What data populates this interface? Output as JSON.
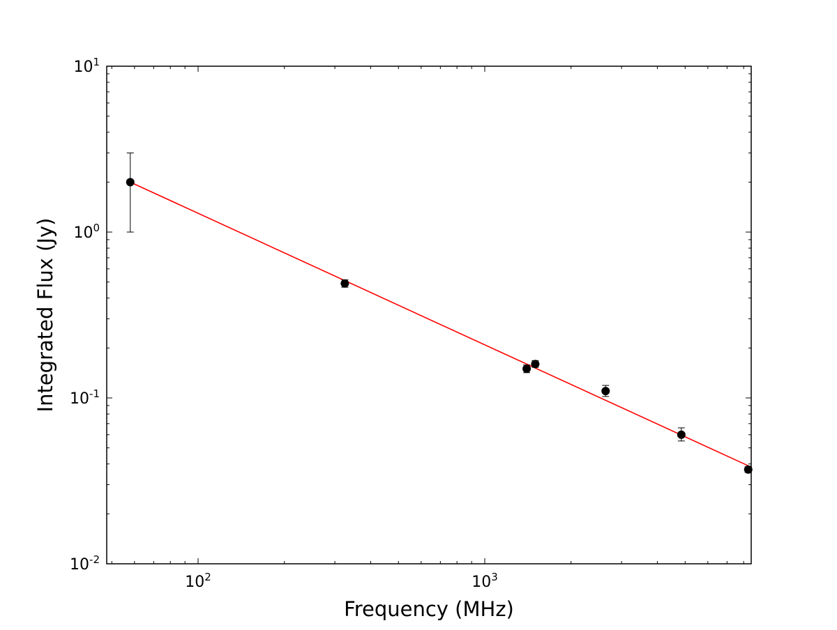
{
  "chart_data": {
    "type": "scatter",
    "title": "",
    "xlabel": "Frequency (MHz)",
    "ylabel": "Integrated Flux (Jy)",
    "xscale": "log",
    "yscale": "log",
    "xlim": [
      48,
      8500
    ],
    "ylim": [
      0.01,
      10
    ],
    "grid": false,
    "x_ticks": [
      {
        "value": 100,
        "base": "10",
        "exp": "2"
      },
      {
        "value": 1000,
        "base": "10",
        "exp": "3"
      }
    ],
    "y_ticks": [
      {
        "value": 0.01,
        "base": "10",
        "exp": "-2"
      },
      {
        "value": 0.1,
        "base": "10",
        "exp": "-1"
      },
      {
        "value": 1,
        "base": "10",
        "exp": "0"
      },
      {
        "value": 10,
        "base": "10",
        "exp": "1"
      }
    ],
    "points": [
      {
        "x": 58,
        "y": 2.0,
        "err_low": 1.0,
        "err_high": 3.0
      },
      {
        "x": 325,
        "y": 0.49,
        "err_low": 0.465,
        "err_high": 0.515
      },
      {
        "x": 1400,
        "y": 0.15,
        "err_low": 0.142,
        "err_high": 0.158
      },
      {
        "x": 1500,
        "y": 0.16,
        "err_low": 0.153,
        "err_high": 0.168
      },
      {
        "x": 2640,
        "y": 0.11,
        "err_low": 0.102,
        "err_high": 0.119
      },
      {
        "x": 4850,
        "y": 0.06,
        "err_low": 0.055,
        "err_high": 0.066
      },
      {
        "x": 8300,
        "y": 0.037,
        "err_low": 0.0355,
        "err_high": 0.0385
      }
    ],
    "fit_line": {
      "x": [
        58,
        8300
      ],
      "y": [
        2.0,
        0.039
      ]
    },
    "colors": {
      "points": "#000000",
      "fit": "#ff0000",
      "axes": "#000000"
    }
  }
}
